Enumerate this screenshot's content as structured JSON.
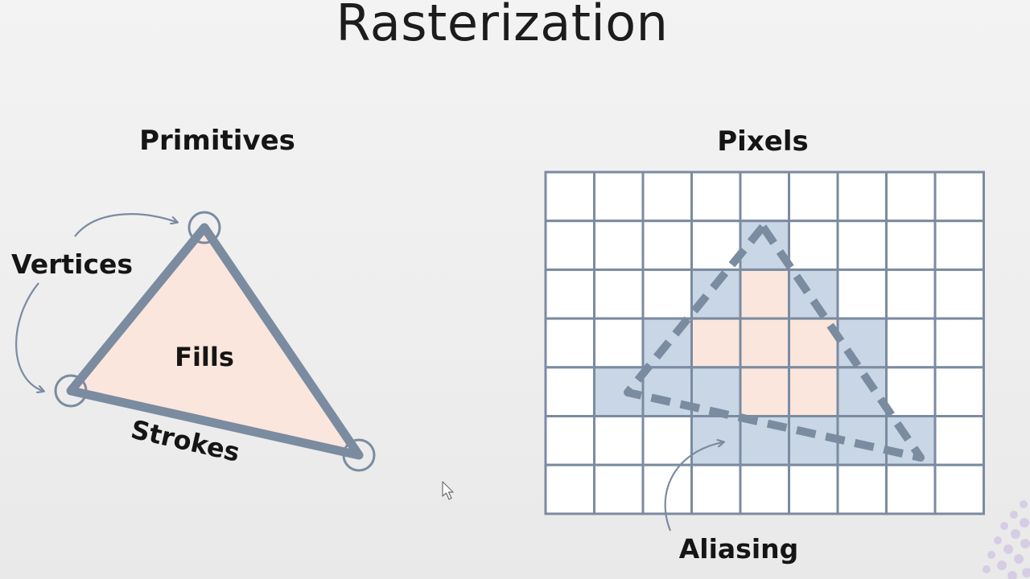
{
  "slide": {
    "title": "Rasterization"
  },
  "left_panel": {
    "heading": "Primitives",
    "labels": {
      "vertices": "Vertices",
      "fills": "Fills",
      "strokes": "Strokes"
    }
  },
  "right_panel": {
    "heading": "Pixels",
    "labels": {
      "aliasing": "Aliasing"
    },
    "grid": {
      "columns": 9,
      "rows": 7,
      "edge_cells": [
        [
          4,
          1
        ],
        [
          3,
          2
        ],
        [
          5,
          2
        ],
        [
          2,
          3
        ],
        [
          6,
          3
        ],
        [
          1,
          4
        ],
        [
          2,
          4
        ],
        [
          3,
          4
        ],
        [
          6,
          4
        ],
        [
          3,
          5
        ],
        [
          4,
          5
        ],
        [
          5,
          5
        ],
        [
          6,
          5
        ],
        [
          7,
          5
        ]
      ],
      "interior_cells": [
        [
          4,
          2
        ],
        [
          3,
          3
        ],
        [
          4,
          3
        ],
        [
          5,
          3
        ],
        [
          4,
          4
        ],
        [
          5,
          4
        ]
      ]
    }
  },
  "colors": {
    "stroke_gray_blue": "#7b8ba0",
    "fill_peach": "#fae6dc",
    "edge_pixel_blue": "#c8d6e6",
    "grid_line": "#7b8ba0",
    "background": "#efefef"
  }
}
